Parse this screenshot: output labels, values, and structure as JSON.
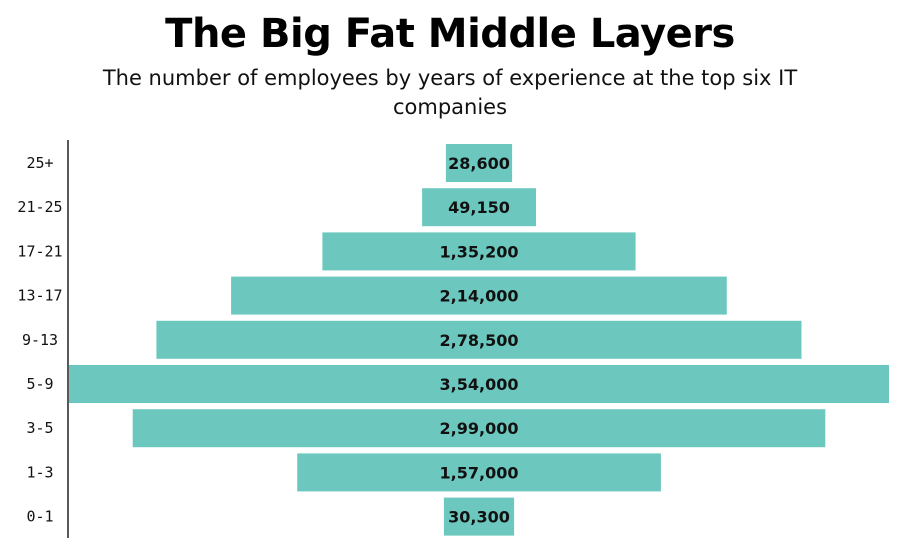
{
  "title": "The Big Fat Middle Layers",
  "subtitle": "The number of employees by years of experience at the top six IT companies",
  "colors": {
    "bar": "#6cc8bf",
    "axis": "#222222",
    "text": "#111111"
  },
  "chart_data": {
    "type": "bar",
    "orientation": "horizontal-centered",
    "title": "The Big Fat Middle Layers",
    "subtitle": "The number of employees by years of experience at the top six IT companies",
    "categories": [
      "25+",
      "21-25",
      "17-21",
      "13-17",
      "9-13",
      "5-9",
      "3-5",
      "1-3",
      "0-1"
    ],
    "values": [
      28600,
      49150,
      135200,
      214000,
      278500,
      354000,
      299000,
      157000,
      30300
    ],
    "value_labels": [
      "28,600",
      "49,150",
      "1,35,200",
      "2,14,000",
      "2,78,500",
      "3,54,000",
      "2,99,000",
      "1,57,000",
      "30,300"
    ],
    "xlabel": "",
    "ylabel": "",
    "grid": false,
    "legend": "none"
  }
}
